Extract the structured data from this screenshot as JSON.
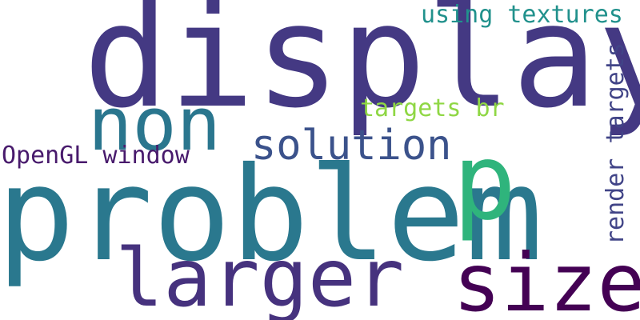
{
  "cloud": {
    "words": [
      {
        "text": "display",
        "color": "#443983"
      },
      {
        "text": "problem",
        "color": "#2a788e"
      },
      {
        "text": "non",
        "color": "#2a768e"
      },
      {
        "text": "larger",
        "color": "#46327e"
      },
      {
        "text": "size",
        "color": "#440154"
      },
      {
        "text": "p",
        "color": "#2fb47c"
      },
      {
        "text": "solution",
        "color": "#3b528b"
      },
      {
        "text": "OpenGL window",
        "color": "#481a6c"
      },
      {
        "text": "targets br",
        "color": "#8fd744"
      },
      {
        "text": "using textures",
        "color": "#21918c"
      },
      {
        "text": "render targets",
        "color": "#414487"
      }
    ]
  }
}
